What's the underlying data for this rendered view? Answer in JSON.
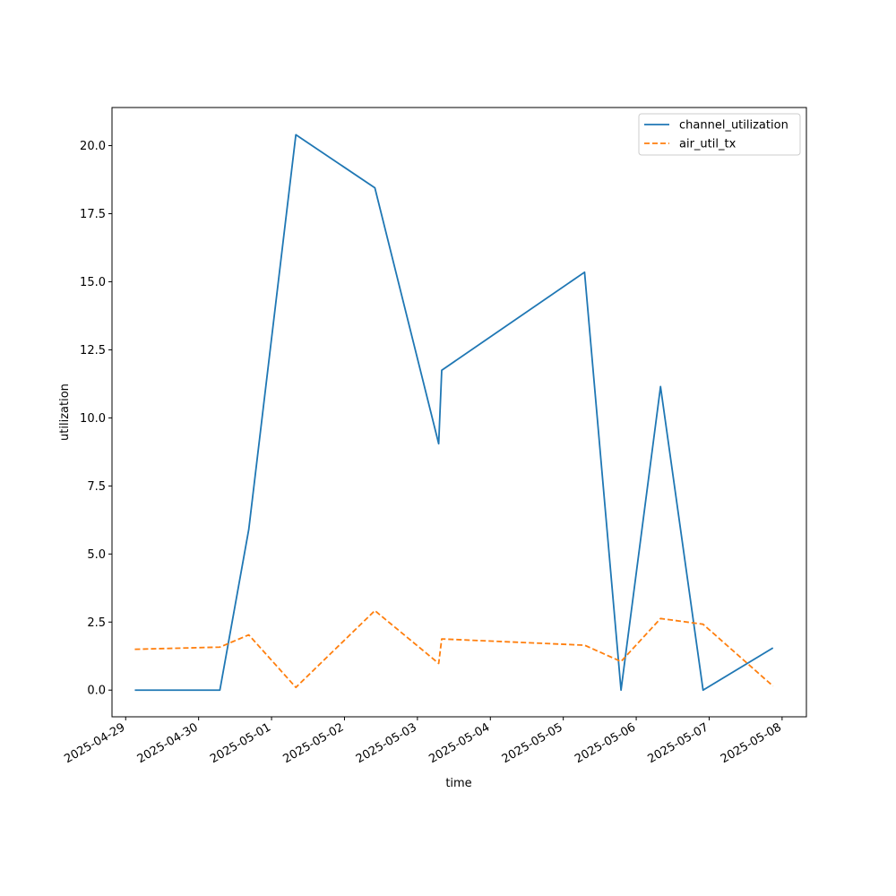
{
  "chart_data": {
    "type": "line",
    "xlabel": "time",
    "ylabel": "utilization",
    "xlim": [
      "2025-04-28T19:30",
      "2025-05-08T08:00"
    ],
    "ylim": [
      -0.98,
      21.4
    ],
    "x_ticks": [
      "2025-04-29",
      "2025-04-30",
      "2025-05-01",
      "2025-05-02",
      "2025-05-03",
      "2025-05-04",
      "2025-05-05",
      "2025-05-06",
      "2025-05-07",
      "2025-05-08"
    ],
    "y_ticks": [
      0.0,
      2.5,
      5.0,
      7.5,
      10.0,
      12.5,
      15.0,
      17.5,
      20.0
    ],
    "y_tick_labels": [
      "0.0",
      "2.5",
      "5.0",
      "7.5",
      "10.0",
      "12.5",
      "15.0",
      "17.5",
      "20.0"
    ],
    "grid": false,
    "legend_position": "top-right",
    "x": [
      "2025-04-29T03:00",
      "2025-04-30T07:00",
      "2025-04-30T16:30",
      "2025-05-01T08:00",
      "2025-05-02T10:00",
      "2025-05-03T07:00",
      "2025-05-03T08:00",
      "2025-05-05T07:00",
      "2025-05-05T19:00",
      "2025-05-06T08:00",
      "2025-05-06T22:00",
      "2025-05-07T21:00"
    ],
    "series": [
      {
        "name": "channel_utilization",
        "color": "#1f77b4",
        "style": "solid",
        "values": [
          0.0,
          0.0,
          5.9,
          20.4,
          18.45,
          9.05,
          11.75,
          15.35,
          0.0,
          11.15,
          0.0,
          1.55
        ]
      },
      {
        "name": "air_util_tx",
        "color": "#ff7f0e",
        "style": "dashed",
        "values": [
          1.5,
          1.58,
          2.03,
          0.1,
          2.92,
          0.98,
          1.88,
          1.65,
          1.05,
          2.63,
          2.42,
          0.15
        ]
      }
    ]
  }
}
